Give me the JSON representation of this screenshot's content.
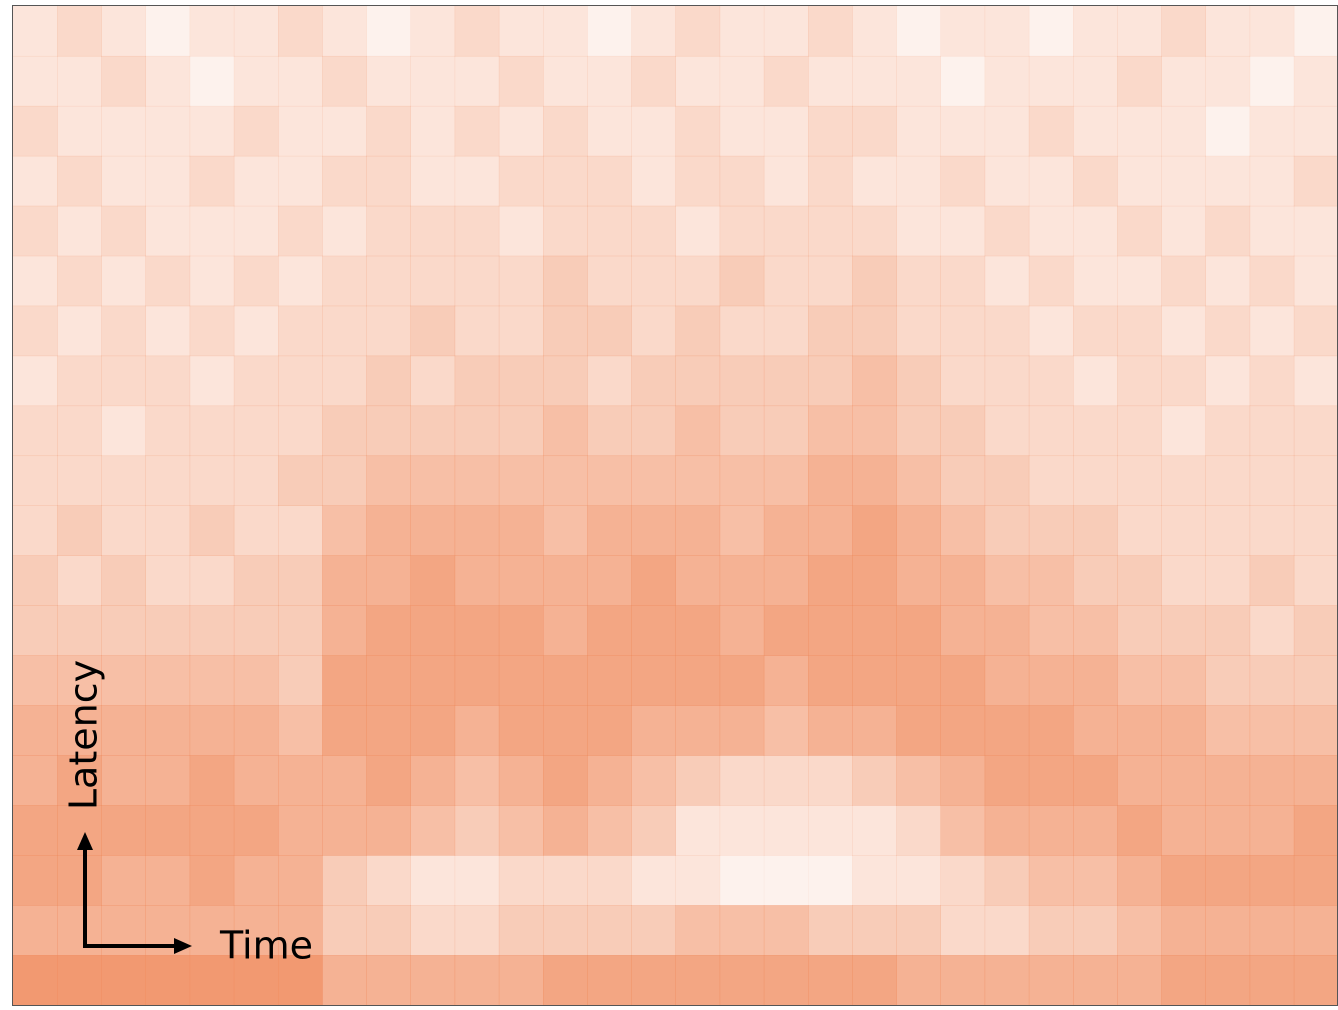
{
  "chart_data": {
    "type": "heatmap",
    "color": "#f08c5f",
    "x_label": "Time",
    "y_label": "Latency",
    "zlim": [
      0,
      9
    ],
    "z": [
      [
        2,
        3,
        2,
        1,
        2,
        2,
        3,
        2,
        1,
        2,
        3,
        2,
        2,
        1,
        2,
        3,
        2,
        2,
        3,
        2,
        1,
        2,
        2,
        1,
        2,
        2,
        3,
        2,
        2,
        1
      ],
      [
        2,
        2,
        3,
        2,
        1,
        2,
        2,
        3,
        2,
        2,
        2,
        3,
        2,
        2,
        3,
        2,
        2,
        3,
        2,
        2,
        2,
        1,
        2,
        2,
        2,
        3,
        2,
        2,
        1,
        2
      ],
      [
        3,
        2,
        2,
        2,
        2,
        3,
        2,
        2,
        3,
        2,
        3,
        2,
        3,
        2,
        2,
        3,
        2,
        2,
        3,
        3,
        2,
        2,
        2,
        3,
        2,
        2,
        2,
        1,
        2,
        2
      ],
      [
        2,
        3,
        2,
        2,
        3,
        2,
        2,
        3,
        3,
        2,
        2,
        3,
        3,
        3,
        2,
        3,
        3,
        2,
        3,
        2,
        2,
        3,
        2,
        2,
        3,
        2,
        2,
        2,
        2,
        3
      ],
      [
        3,
        2,
        3,
        2,
        2,
        2,
        3,
        2,
        3,
        3,
        3,
        2,
        3,
        3,
        3,
        2,
        3,
        3,
        3,
        3,
        2,
        2,
        3,
        2,
        2,
        3,
        2,
        3,
        2,
        2
      ],
      [
        2,
        3,
        2,
        3,
        2,
        3,
        2,
        3,
        3,
        3,
        3,
        3,
        4,
        3,
        3,
        3,
        4,
        3,
        3,
        4,
        3,
        3,
        2,
        3,
        2,
        2,
        3,
        2,
        3,
        2
      ],
      [
        3,
        2,
        3,
        2,
        3,
        2,
        3,
        3,
        3,
        4,
        3,
        3,
        4,
        4,
        3,
        4,
        3,
        3,
        4,
        4,
        3,
        3,
        3,
        2,
        3,
        3,
        2,
        3,
        2,
        3
      ],
      [
        2,
        3,
        3,
        3,
        2,
        3,
        3,
        3,
        4,
        3,
        4,
        4,
        4,
        3,
        4,
        4,
        4,
        4,
        4,
        5,
        4,
        3,
        3,
        3,
        2,
        3,
        3,
        2,
        3,
        2
      ],
      [
        3,
        3,
        2,
        3,
        3,
        3,
        3,
        4,
        4,
        4,
        4,
        4,
        5,
        4,
        4,
        5,
        4,
        4,
        5,
        5,
        4,
        4,
        3,
        3,
        3,
        3,
        2,
        3,
        3,
        3
      ],
      [
        3,
        3,
        3,
        3,
        3,
        3,
        4,
        4,
        5,
        5,
        5,
        5,
        5,
        5,
        5,
        5,
        5,
        5,
        6,
        6,
        5,
        4,
        4,
        3,
        3,
        3,
        3,
        3,
        3,
        3
      ],
      [
        3,
        4,
        3,
        3,
        4,
        3,
        3,
        5,
        6,
        6,
        6,
        6,
        5,
        6,
        6,
        6,
        5,
        6,
        6,
        7,
        6,
        5,
        4,
        4,
        4,
        3,
        3,
        3,
        3,
        3
      ],
      [
        4,
        3,
        4,
        3,
        3,
        4,
        4,
        6,
        6,
        7,
        6,
        6,
        6,
        6,
        7,
        6,
        6,
        6,
        7,
        7,
        6,
        6,
        5,
        5,
        4,
        4,
        3,
        3,
        4,
        3
      ],
      [
        4,
        4,
        4,
        4,
        4,
        4,
        4,
        6,
        7,
        7,
        7,
        7,
        6,
        7,
        7,
        7,
        6,
        7,
        7,
        7,
        7,
        6,
        6,
        5,
        5,
        4,
        4,
        4,
        3,
        4
      ],
      [
        5,
        5,
        5,
        5,
        5,
        5,
        4,
        7,
        7,
        7,
        7,
        7,
        7,
        7,
        7,
        7,
        7,
        6,
        7,
        7,
        7,
        7,
        6,
        6,
        6,
        5,
        5,
        4,
        4,
        4
      ],
      [
        6,
        6,
        6,
        6,
        6,
        6,
        5,
        7,
        7,
        7,
        6,
        7,
        7,
        7,
        6,
        6,
        6,
        5,
        6,
        6,
        7,
        7,
        7,
        7,
        6,
        6,
        6,
        5,
        5,
        5
      ],
      [
        6,
        7,
        6,
        6,
        7,
        6,
        6,
        6,
        7,
        6,
        5,
        6,
        7,
        6,
        5,
        4,
        3,
        3,
        3,
        4,
        5,
        6,
        7,
        7,
        7,
        6,
        6,
        6,
        6,
        6
      ],
      [
        7,
        7,
        7,
        7,
        7,
        7,
        6,
        6,
        6,
        5,
        4,
        5,
        6,
        5,
        4,
        2,
        2,
        2,
        2,
        2,
        3,
        5,
        6,
        6,
        6,
        7,
        6,
        6,
        6,
        7
      ],
      [
        7,
        7,
        6,
        6,
        7,
        6,
        6,
        4,
        3,
        2,
        2,
        3,
        3,
        3,
        2,
        2,
        1,
        1,
        1,
        2,
        2,
        3,
        4,
        5,
        5,
        6,
        7,
        7,
        7,
        7
      ],
      [
        6,
        6,
        6,
        6,
        6,
        6,
        6,
        4,
        4,
        3,
        3,
        4,
        4,
        4,
        4,
        5,
        5,
        5,
        4,
        4,
        4,
        3,
        3,
        4,
        4,
        5,
        6,
        6,
        6,
        6
      ],
      [
        8,
        8,
        8,
        8,
        8,
        8,
        8,
        6,
        6,
        6,
        6,
        6,
        7,
        7,
        7,
        7,
        7,
        7,
        7,
        7,
        6,
        6,
        6,
        6,
        6,
        6,
        7,
        7,
        7,
        7
      ]
    ]
  }
}
